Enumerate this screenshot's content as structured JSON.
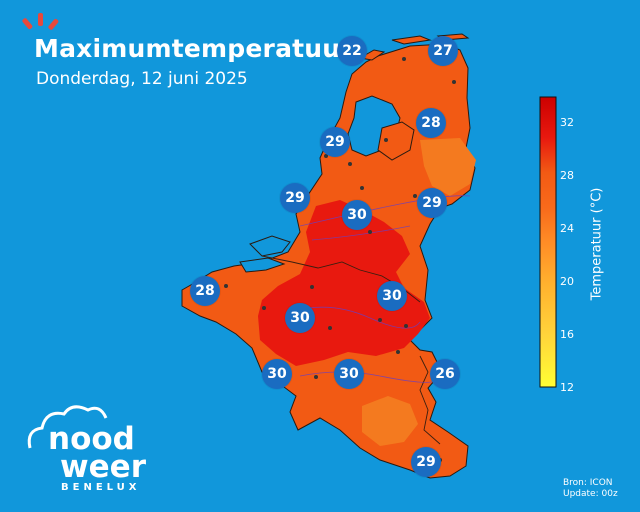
{
  "header": {
    "title": "Maximumtemperatuur",
    "subtitle": "Donderdag, 12 juni 2025"
  },
  "map": {
    "land_color": "#f25a14",
    "hot_color": "#e8190f",
    "warm_color": "#f47a1f",
    "water_color": "#1197db",
    "marker_color": "#1a6cc1",
    "temperatures": [
      22,
      27,
      28,
      29,
      29,
      29,
      30,
      28,
      30,
      30,
      30,
      30,
      26,
      29
    ]
  },
  "legend": {
    "label": "Temperatuur (°C)",
    "ticks": [
      "32",
      "28",
      "24",
      "20",
      "16",
      "12"
    ],
    "range": [
      12,
      34
    ],
    "colors": [
      "#ffff33",
      "#ffd43b",
      "#ffb02e",
      "#ff8c26",
      "#f86a1b",
      "#f25a14",
      "#e8190f",
      "#cc0000"
    ]
  },
  "source": {
    "line1": "Bron: ICON",
    "line2": "Update: 00z"
  },
  "logo": {
    "word1": "nood",
    "word2": "weer",
    "tagline": "BENELUX",
    "icon": "cloud-sun-icon"
  }
}
